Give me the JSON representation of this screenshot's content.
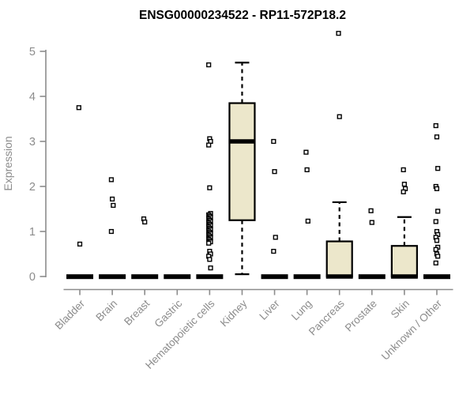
{
  "chart_data": {
    "type": "boxplot",
    "title": "ENSG00000234522 - RP11-572P18.2",
    "ylabel": "Expression",
    "ylim": [
      0,
      5
    ],
    "yticks": [
      0,
      1,
      2,
      3,
      4,
      5
    ],
    "grid": false,
    "legend": false,
    "categories": [
      "Bladder",
      "Brain",
      "Breast",
      "Gastric",
      "Hematopoietic cells",
      "Kidney",
      "Liver",
      "Lung",
      "Pancreas",
      "Prostate",
      "Skin",
      "Unknown / Other"
    ],
    "series": [
      {
        "category": "Bladder",
        "q1": 0,
        "median": 0,
        "q3": 0,
        "whisker_low": 0,
        "whisker_high": 0,
        "outliers": [
          3.75,
          0.72
        ]
      },
      {
        "category": "Brain",
        "q1": 0,
        "median": 0,
        "q3": 0,
        "whisker_low": 0,
        "whisker_high": 0,
        "outliers": [
          2.15,
          1.72,
          1.58,
          1.0
        ]
      },
      {
        "category": "Breast",
        "q1": 0,
        "median": 0,
        "q3": 0,
        "whisker_low": 0,
        "whisker_high": 0,
        "outliers": [
          1.28,
          1.21
        ]
      },
      {
        "category": "Gastric",
        "q1": 0,
        "median": 0,
        "q3": 0,
        "whisker_low": 0,
        "whisker_high": 0,
        "outliers": []
      },
      {
        "category": "Hematopoietic cells",
        "q1": 0,
        "median": 0,
        "q3": 0,
        "whisker_low": 0,
        "whisker_high": 0,
        "outliers": [
          4.7,
          3.06,
          3.0,
          2.92,
          1.97,
          1.4,
          1.37,
          1.34,
          1.31,
          1.28,
          1.25,
          1.22,
          1.19,
          1.16,
          1.13,
          1.1,
          1.07,
          1.04,
          1.01,
          0.98,
          0.95,
          0.92,
          0.89,
          0.86,
          0.83,
          0.8,
          0.77,
          0.74,
          0.56,
          0.5,
          0.45,
          0.38,
          0.19
        ]
      },
      {
        "category": "Kidney",
        "q1": 1.25,
        "median": 3.0,
        "q3": 3.85,
        "whisker_low": 0.05,
        "whisker_high": 4.75,
        "outliers": []
      },
      {
        "category": "Liver",
        "q1": 0,
        "median": 0,
        "q3": 0,
        "whisker_low": 0,
        "whisker_high": 0,
        "outliers": [
          3.0,
          2.33,
          0.87,
          0.56
        ]
      },
      {
        "category": "Lung",
        "q1": 0,
        "median": 0,
        "q3": 0,
        "whisker_low": 0,
        "whisker_high": 0,
        "outliers": [
          2.76,
          2.37,
          1.23
        ]
      },
      {
        "category": "Pancreas",
        "q1": 0,
        "median": 0,
        "q3": 0.78,
        "whisker_low": 0,
        "whisker_high": 1.65,
        "outliers": [
          5.4,
          3.55
        ]
      },
      {
        "category": "Prostate",
        "q1": 0,
        "median": 0,
        "q3": 0,
        "whisker_low": 0,
        "whisker_high": 0,
        "outliers": [
          1.46,
          1.2
        ]
      },
      {
        "category": "Skin",
        "q1": 0,
        "median": 0,
        "q3": 0.68,
        "whisker_low": 0,
        "whisker_high": 1.32,
        "outliers": [
          2.37,
          2.05,
          1.95,
          1.88
        ]
      },
      {
        "category": "Unknown / Other",
        "q1": 0,
        "median": 0,
        "q3": 0,
        "whisker_low": 0,
        "whisker_high": 0,
        "outliers": [
          3.35,
          3.1,
          2.4,
          2.0,
          1.95,
          1.45,
          1.22,
          1.0,
          0.93,
          0.87,
          0.8,
          0.65,
          0.6,
          0.5,
          0.45,
          0.3
        ]
      }
    ],
    "style": {
      "box_fill": "#ECE7CB",
      "box_stroke": "#000000",
      "median_color": "#000000",
      "axis_color": "#8C8C8C",
      "title_color": "#000000",
      "background": "#FFFFFF"
    }
  }
}
